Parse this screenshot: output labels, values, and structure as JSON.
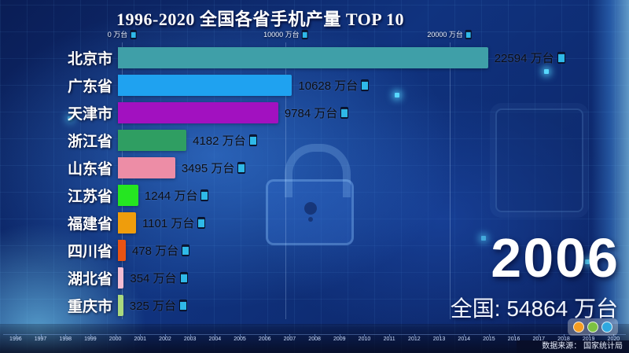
{
  "title": "1996-2020 全国各省手机产量 TOP 10",
  "chart_data": {
    "type": "bar",
    "orientation": "horizontal",
    "unit": "万台",
    "year": "2006",
    "total_label": "全国: 54864 万台",
    "source": "数据来源：  国家统计局",
    "x_axis": {
      "max": 24000,
      "ticks": [
        {
          "value": 0,
          "label": "0 万台"
        },
        {
          "value": 10000,
          "label": "10000 万台"
        },
        {
          "value": 20000,
          "label": "20000 万台"
        }
      ]
    },
    "bars": [
      {
        "name": "北京市",
        "value": 22594,
        "label": "22594 万台",
        "color": "#3f9fa8"
      },
      {
        "name": "广东省",
        "value": 10628,
        "label": "10628 万台",
        "color": "#1fa2f0"
      },
      {
        "name": "天津市",
        "value": 9784,
        "label": "9784 万台",
        "color": "#a211c0"
      },
      {
        "name": "浙江省",
        "value": 4182,
        "label": "4182 万台",
        "color": "#2f9e62"
      },
      {
        "name": "山东省",
        "value": 3495,
        "label": "3495 万台",
        "color": "#ed8da6"
      },
      {
        "name": "江苏省",
        "value": 1244,
        "label": "1244 万台",
        "color": "#25e621"
      },
      {
        "name": "福建省",
        "value": 1101,
        "label": "1101 万台",
        "color": "#ef9d0c"
      },
      {
        "name": "四川省",
        "value": 478,
        "label": "478 万台",
        "color": "#e85313"
      },
      {
        "name": "湖北省",
        "value": 354,
        "label": "354 万台",
        "color": "#f3bdd3"
      },
      {
        "name": "重庆市",
        "value": 325,
        "label": "325 万台",
        "color": "#a9d97f"
      }
    ],
    "timeline_years": [
      "1996",
      "1997",
      "1998",
      "1999",
      "2000",
      "2001",
      "2002",
      "2003",
      "2004",
      "2005",
      "2006",
      "2007",
      "2008",
      "2009",
      "2010",
      "2011",
      "2012",
      "2013",
      "2014",
      "2015",
      "2016",
      "2017",
      "2018",
      "2019",
      "2020"
    ]
  }
}
